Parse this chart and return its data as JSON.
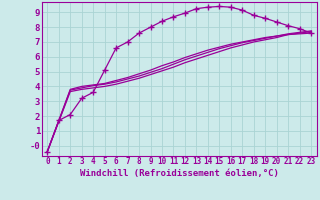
{
  "background_color": "#cceaea",
  "grid_color": "#aad4d4",
  "line_color": "#990099",
  "xlabel": "Windchill (Refroidissement éolien,°C)",
  "xlim": [
    -0.5,
    23.5
  ],
  "ylim": [
    -0.7,
    9.7
  ],
  "yticks": [
    0,
    1,
    2,
    3,
    4,
    5,
    6,
    7,
    8,
    9
  ],
  "ytick_labels": [
    "-0",
    "1",
    "2",
    "3",
    "4",
    "5",
    "6",
    "7",
    "8",
    "9"
  ],
  "xticks": [
    0,
    1,
    2,
    3,
    4,
    5,
    6,
    7,
    8,
    9,
    10,
    11,
    12,
    13,
    14,
    15,
    16,
    17,
    18,
    19,
    20,
    21,
    22,
    23
  ],
  "curves": [
    {
      "x": [
        0,
        1,
        2,
        3,
        4,
        5,
        6,
        7,
        8,
        9,
        10,
        11,
        12,
        13,
        14,
        15,
        16,
        17,
        18,
        19,
        20,
        21,
        22,
        23
      ],
      "y": [
        -0.4,
        1.7,
        2.1,
        3.2,
        3.6,
        5.1,
        6.6,
        7.0,
        7.6,
        8.0,
        8.4,
        8.7,
        8.95,
        9.25,
        9.35,
        9.4,
        9.35,
        9.15,
        8.8,
        8.6,
        8.35,
        8.1,
        7.9,
        7.6
      ],
      "marker": "+",
      "markersize": 5,
      "lw": 0.9
    },
    {
      "x": [
        0,
        2,
        3,
        4,
        5,
        6,
        7,
        8,
        9,
        10,
        11,
        12,
        13,
        14,
        15,
        16,
        17,
        18,
        19,
        20,
        21,
        22,
        23
      ],
      "y": [
        -0.4,
        3.8,
        4.0,
        4.1,
        4.2,
        4.4,
        4.6,
        4.85,
        5.1,
        5.4,
        5.65,
        5.95,
        6.2,
        6.45,
        6.65,
        6.85,
        7.0,
        7.15,
        7.3,
        7.4,
        7.5,
        7.55,
        7.6
      ],
      "marker": null,
      "markersize": 0,
      "lw": 0.9
    },
    {
      "x": [
        0,
        2,
        3,
        4,
        5,
        6,
        7,
        8,
        9,
        10,
        11,
        12,
        13,
        14,
        15,
        16,
        17,
        18,
        19,
        20,
        21,
        22,
        23
      ],
      "y": [
        -0.4,
        3.75,
        3.9,
        4.05,
        4.15,
        4.3,
        4.5,
        4.7,
        4.95,
        5.2,
        5.5,
        5.8,
        6.05,
        6.3,
        6.55,
        6.75,
        6.95,
        7.1,
        7.25,
        7.4,
        7.55,
        7.65,
        7.75
      ],
      "marker": null,
      "markersize": 0,
      "lw": 0.9
    },
    {
      "x": [
        0,
        2,
        3,
        4,
        5,
        6,
        7,
        8,
        9,
        10,
        11,
        12,
        13,
        14,
        15,
        16,
        17,
        18,
        19,
        20,
        21,
        22,
        23
      ],
      "y": [
        -0.4,
        3.65,
        3.8,
        3.9,
        4.0,
        4.15,
        4.35,
        4.55,
        4.8,
        5.05,
        5.3,
        5.6,
        5.85,
        6.1,
        6.35,
        6.6,
        6.8,
        7.0,
        7.15,
        7.3,
        7.5,
        7.6,
        7.7
      ],
      "marker": null,
      "markersize": 0,
      "lw": 0.9
    }
  ],
  "xlabel_fontsize": 6.5,
  "ytick_fontsize": 6.5,
  "xtick_fontsize": 5.5
}
